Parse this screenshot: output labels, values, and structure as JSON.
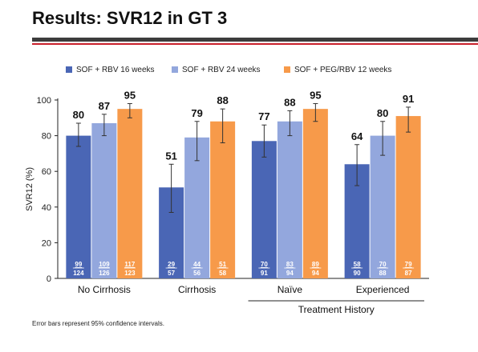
{
  "header": {
    "title": "Results: SVR12 in GT 3"
  },
  "footnote": "Error bars represent 95% confidence intervals.",
  "colors": {
    "title_rule_dark": "#3c3c3c",
    "title_rule_red": "#c8202b"
  },
  "chart_data": {
    "type": "bar",
    "ylabel": "SVR12 (%)",
    "ylim": [
      0,
      100
    ],
    "yticks": [
      "0",
      "20",
      "40",
      "60",
      "80",
      "100"
    ],
    "grid": false,
    "legend_position": "top",
    "categories": [
      "No Cirrhosis",
      "Cirrhosis",
      "Naïve",
      "Experienced"
    ],
    "group_label": "Treatment History",
    "series": [
      {
        "name": "SOF + RBV 16 weeks",
        "color": "#4a66b5",
        "values": [
          80,
          51,
          77,
          64
        ],
        "labels": [
          "80",
          "51",
          "77",
          "64"
        ],
        "err_low": [
          74,
          37,
          68,
          52
        ],
        "err_high": [
          87,
          64,
          86,
          75
        ],
        "numerators": [
          "99",
          "29",
          "70",
          "58"
        ],
        "denominators": [
          "124",
          "57",
          "91",
          "90"
        ]
      },
      {
        "name": "SOF + RBV 24 weeks",
        "color": "#93a7dd",
        "values": [
          87,
          79,
          88,
          80
        ],
        "labels": [
          "87",
          "79",
          "88",
          "80"
        ],
        "err_low": [
          80,
          66,
          80,
          69
        ],
        "err_high": [
          92,
          88,
          94,
          88
        ],
        "numerators": [
          "109",
          "44",
          "83",
          "70"
        ],
        "denominators": [
          "126",
          "56",
          "94",
          "88"
        ]
      },
      {
        "name": "SOF + PEG/RBV 12 weeks",
        "color": "#f79a4a",
        "values": [
          95,
          88,
          95,
          91
        ],
        "labels": [
          "95",
          "88",
          "95",
          "91"
        ],
        "err_low": [
          90,
          76,
          88,
          82
        ],
        "err_high": [
          98,
          95,
          98,
          96
        ],
        "numerators": [
          "117",
          "51",
          "89",
          "79"
        ],
        "denominators": [
          "123",
          "58",
          "94",
          "87"
        ]
      }
    ]
  }
}
